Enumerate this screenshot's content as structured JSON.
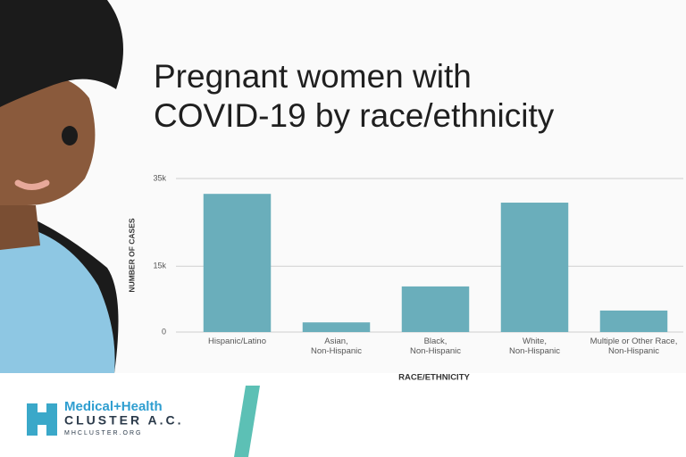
{
  "chart_data": {
    "type": "bar",
    "title": "Pregnant women with\nCOVID-19 by race/ethnicity",
    "categories": [
      "Hispanic/Latino",
      "Asian,\nNon-Hispanic",
      "Black,\nNon-Hispanic",
      "White,\nNon-Hispanic",
      "Multiple or Other Race,\nNon-Hispanic"
    ],
    "values": [
      31500,
      2200,
      10400,
      29500,
      4900
    ],
    "color": "#6aaebb",
    "ylabel": "NUMBER OF CASES",
    "xlabel": "RACE/ETHNICITY",
    "ylim": [
      0,
      35000
    ],
    "yticks": [
      0,
      {
        "value": 15000,
        "label": "15k"
      },
      {
        "value": 35000,
        "label": "35k"
      }
    ],
    "grid": true
  },
  "logo": {
    "name": "Medical+Health",
    "org": "CLUSTER A.C.",
    "url": "MHCLUSTER.ORG"
  }
}
